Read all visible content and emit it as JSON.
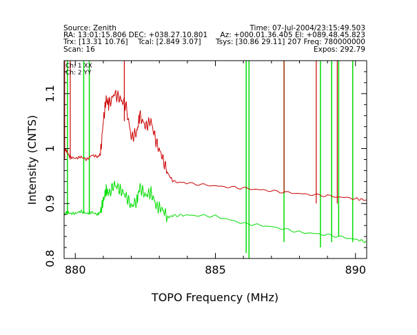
{
  "header": {
    "source": "Source: Zenith",
    "time": "Time: 07-Jul-2004/23:15:49.503",
    "ra_dec": "RA: 13:01:15.806 DEC: +038.27.10.801",
    "az_el": "Az: +000.01.36.405 El: +089.48.45.823",
    "trx": "Trx: [13.31 10.76]",
    "tcal": "Tcal: [2.849 3.07]",
    "tsys": "Tsys: [30.86 29.11]",
    "freq": "207 Freq: 780000000",
    "scan": "Scan: 16",
    "expos": "Expos: 292.79"
  },
  "chart_data": {
    "type": "line",
    "xlabel": "TOPO Frequency (MHz)",
    "ylabel": "Intensity (CNTS)",
    "xlim": [
      879.6,
      890.4
    ],
    "ylim": [
      0.8,
      1.16
    ],
    "xticks": [
      "880",
      "885",
      "890"
    ],
    "yticks": [
      "0.8",
      "0.9",
      "1",
      "1.1"
    ],
    "grid": false,
    "legend_position": "top-left",
    "colors": {
      "xx": "#cc0000",
      "yy": "#00dd00"
    },
    "series": [
      {
        "name": "Ch: 1 XX",
        "x": [
          879.6,
          879.7,
          879.8,
          880.0,
          880.2,
          880.4,
          880.6,
          880.8,
          880.9,
          881.0,
          881.1,
          881.2,
          881.4,
          881.6,
          881.8,
          882.0,
          882.2,
          882.3,
          882.5,
          882.7,
          882.9,
          883.1,
          883.3,
          883.5,
          884.0,
          885.0,
          886.0,
          887.0,
          888.0,
          889.0,
          890.0,
          890.4
        ],
        "y": [
          1.0,
          0.995,
          0.985,
          0.982,
          0.985,
          0.98,
          0.988,
          0.985,
          0.99,
          1.05,
          1.09,
          1.08,
          1.1,
          1.09,
          1.08,
          1.02,
          1.03,
          1.06,
          1.04,
          1.05,
          1.01,
          0.985,
          0.955,
          0.94,
          0.937,
          0.932,
          0.928,
          0.923,
          0.918,
          0.914,
          0.909,
          0.906
        ]
      },
      {
        "name": "Ch: 2 YY",
        "x": [
          879.6,
          879.7,
          879.8,
          880.0,
          880.2,
          880.4,
          880.6,
          880.8,
          880.9,
          881.0,
          881.1,
          881.2,
          881.4,
          881.6,
          881.8,
          882.0,
          882.2,
          882.3,
          882.5,
          882.7,
          882.9,
          883.1,
          883.3,
          883.5,
          884.0,
          885.0,
          886.0,
          887.0,
          888.0,
          889.0,
          890.0,
          890.4
        ],
        "y": [
          0.88,
          0.885,
          0.882,
          0.882,
          0.886,
          0.882,
          0.884,
          0.88,
          0.885,
          0.905,
          0.925,
          0.918,
          0.935,
          0.925,
          0.915,
          0.895,
          0.905,
          0.93,
          0.915,
          0.92,
          0.895,
          0.89,
          0.875,
          0.878,
          0.879,
          0.877,
          0.864,
          0.858,
          0.848,
          0.843,
          0.835,
          0.83
        ]
      }
    ],
    "spikes": [
      {
        "x": 879.62,
        "ch": "xx",
        "y1": 0.98,
        "y2": 1.16
      },
      {
        "x": 879.72,
        "ch": "yy",
        "y1": 0.88,
        "y2": 1.16
      },
      {
        "x": 879.82,
        "ch": "xx",
        "y1": 0.98,
        "y2": 1.16
      },
      {
        "x": 880.3,
        "ch": "yy",
        "y1": 0.882,
        "y2": 1.16
      },
      {
        "x": 880.5,
        "ch": "yy",
        "y1": 0.88,
        "y2": 1.16
      },
      {
        "x": 881.75,
        "ch": "xx",
        "y1": 1.05,
        "y2": 1.16
      },
      {
        "x": 886.1,
        "ch": "yy",
        "y1": 0.81,
        "y2": 1.16
      },
      {
        "x": 886.2,
        "ch": "yy",
        "y1": 0.8,
        "y2": 1.16
      },
      {
        "x": 887.45,
        "ch": "yy",
        "y1": 0.83,
        "y2": 1.16
      },
      {
        "x": 887.45,
        "ch": "xx",
        "y1": 0.92,
        "y2": 1.16
      },
      {
        "x": 888.6,
        "ch": "xx",
        "y1": 0.9,
        "y2": 1.16
      },
      {
        "x": 888.75,
        "ch": "yy",
        "y1": 0.82,
        "y2": 1.16
      },
      {
        "x": 889.15,
        "ch": "yy",
        "y1": 0.83,
        "y2": 1.16
      },
      {
        "x": 889.35,
        "ch": "xx",
        "y1": 0.9,
        "y2": 1.16
      },
      {
        "x": 889.4,
        "ch": "yy",
        "y1": 0.84,
        "y2": 1.16
      },
      {
        "x": 889.9,
        "ch": "xx",
        "y1": 0.9,
        "y2": 1.16
      },
      {
        "x": 889.9,
        "ch": "yy",
        "y1": 0.83,
        "y2": 1.16
      }
    ]
  }
}
